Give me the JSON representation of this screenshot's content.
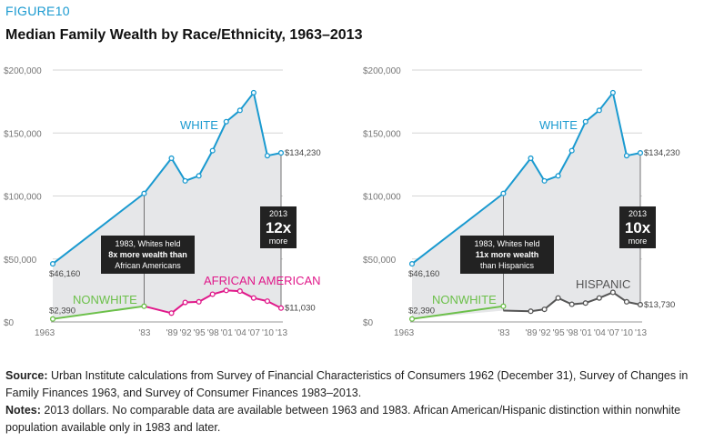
{
  "figure_label": "FIGURE10",
  "title": "Median Family Wealth by Race/Ethnicity, 1963–2013",
  "colors": {
    "white_series": "#1a9ad0",
    "african_american_series": "#e0198a",
    "hispanic_series": "#555555",
    "nonwhite_series": "#6cc04a",
    "area_fill": "#e6e7e9",
    "box": "#222222"
  },
  "chart_data": [
    {
      "type": "line",
      "x_tick_labels": [
        "1963",
        "'83",
        "'89",
        "'92",
        "'95",
        "'98",
        "'01",
        "'04",
        "'07",
        "'10",
        "'13"
      ],
      "y_tick_labels": [
        "$0",
        "$50,000",
        "$100,000",
        "$150,000",
        "$200,000"
      ],
      "ylim": [
        0,
        200000
      ],
      "x": [
        1963,
        1983,
        1989,
        1992,
        1995,
        1998,
        2001,
        2004,
        2007,
        2010,
        2013
      ],
      "series": [
        {
          "name": "WHITE",
          "x": [
            1963,
            1983,
            1989,
            1992,
            1995,
            1998,
            2001,
            2004,
            2007,
            2010,
            2013
          ],
          "values": [
            46160,
            102000,
            130000,
            112000,
            116000,
            136000,
            159000,
            168000,
            182000,
            132000,
            134230
          ]
        },
        {
          "name": "NONWHITE",
          "x": [
            1963,
            1983
          ],
          "values": [
            2390,
            12500
          ]
        },
        {
          "name": "AFRICAN AMERICAN",
          "x": [
            1983,
            1989,
            1992,
            1995,
            1998,
            2001,
            2004,
            2007,
            2010,
            2013
          ],
          "values": [
            12500,
            7000,
            15500,
            16000,
            22000,
            25000,
            24500,
            19000,
            16500,
            11030
          ]
        }
      ],
      "series_labels": [
        "WHITE",
        "NONWHITE",
        "AFRICAN AMERICAN"
      ],
      "end_labels": {
        "white_start": "$46,160",
        "white_end": "$134,230",
        "nonwhite_start": "$2,390",
        "minority_end": "$11,030"
      },
      "annotation_1983": [
        "1983, Whites held",
        "8x more wealth than",
        "African Americans"
      ],
      "annotation_2013": [
        "2013",
        "12x",
        "more"
      ]
    },
    {
      "type": "line",
      "x_tick_labels": [
        "1963",
        "'83",
        "'89",
        "'92",
        "'95",
        "'98",
        "'01",
        "'04",
        "'07",
        "'10",
        "'13"
      ],
      "y_tick_labels": [
        "$0",
        "$50,000",
        "$100,000",
        "$150,000",
        "$200,000"
      ],
      "ylim": [
        0,
        200000
      ],
      "x": [
        1963,
        1983,
        1989,
        1992,
        1995,
        1998,
        2001,
        2004,
        2007,
        2010,
        2013
      ],
      "series": [
        {
          "name": "WHITE",
          "x": [
            1963,
            1983,
            1989,
            1992,
            1995,
            1998,
            2001,
            2004,
            2007,
            2010,
            2013
          ],
          "values": [
            46160,
            102000,
            130000,
            112000,
            116000,
            136000,
            159000,
            168000,
            182000,
            132000,
            134230
          ]
        },
        {
          "name": "NONWHITE",
          "x": [
            1963,
            1983
          ],
          "values": [
            2390,
            12500
          ]
        },
        {
          "name": "HISPANIC",
          "x": [
            1983,
            1989,
            1992,
            1995,
            1998,
            2001,
            2004,
            2007,
            2010,
            2013
          ],
          "values": [
            9000,
            8500,
            10000,
            19000,
            14000,
            15000,
            19000,
            23500,
            16000,
            13730
          ]
        }
      ],
      "series_labels": [
        "WHITE",
        "NONWHITE",
        "HISPANIC"
      ],
      "end_labels": {
        "white_start": "$46,160",
        "white_end": "$134,230",
        "nonwhite_start": "$2,390",
        "minority_end": "$13,730"
      },
      "annotation_1983": [
        "1983, Whites held",
        "11x more wealth",
        "than Hispanics"
      ],
      "annotation_2013": [
        "2013",
        "10x",
        "more"
      ]
    }
  ],
  "source": {
    "label": "Source:",
    "text": " Urban Institute calculations from Survey of Financial Characteristics of Consumers 1962 (December 31), Survey of Changes in Family Finances 1963, and Survey of Consumer Finances 1983–2013."
  },
  "notes": {
    "label": "Notes:",
    "text": " 2013 dollars. No comparable data are available between 1963 and 1983. African American/Hispanic distinction within nonwhite population available only in 1983 and later."
  }
}
